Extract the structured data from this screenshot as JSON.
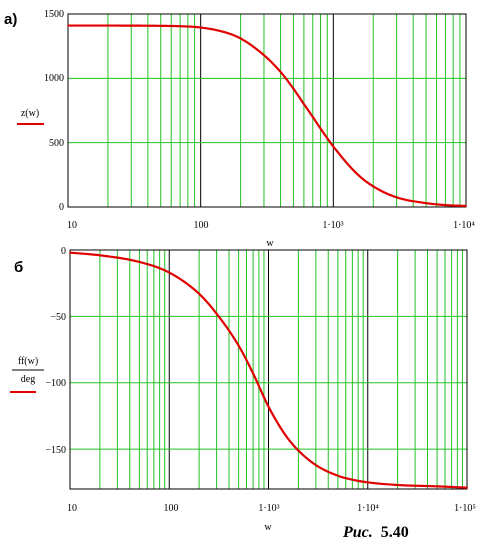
{
  "caption": {
    "prefix": "Рис.",
    "number": "5.40"
  },
  "chart_data": [
    {
      "type": "line",
      "panel_label": "а)",
      "xlabel": "w",
      "ylabel": "z(w)",
      "xscale": "log",
      "xlim": [
        10,
        10000
      ],
      "ylim": [
        0,
        1500
      ],
      "grid": true,
      "x_tick_labels": [
        "10",
        "100",
        "1·10³",
        "1·10⁴"
      ],
      "y_tick_labels": [
        "0",
        "500",
        "1000",
        "1500"
      ],
      "y_ticks": [
        0,
        500,
        1000,
        1500
      ],
      "series": [
        {
          "color": "#e00000",
          "x": [
            10,
            20,
            50,
            70,
            100,
            150,
            200,
            300,
            400,
            500,
            600,
            700,
            800,
            1000,
            1500,
            2000,
            3000,
            5000,
            7000,
            10000
          ],
          "y": [
            1410,
            1410,
            1408,
            1405,
            1395,
            1360,
            1310,
            1180,
            1050,
            920,
            800,
            700,
            610,
            470,
            260,
            160,
            75,
            30,
            15,
            8
          ]
        }
      ]
    },
    {
      "type": "line",
      "panel_label": "б",
      "xlabel": "w",
      "ylabel": "ff(w)",
      "ylabel_denominator": "deg",
      "xscale": "log",
      "xlim": [
        10,
        100000
      ],
      "ylim": [
        -180,
        0
      ],
      "grid": true,
      "x_tick_labels": [
        "10",
        "100",
        "1·10³",
        "1·10⁴",
        "1·10⁵"
      ],
      "y_tick_labels": [
        "0",
        "−50",
        "−100",
        "−150"
      ],
      "y_ticks": [
        0,
        -50,
        -100,
        -150
      ],
      "series": [
        {
          "color": "#e00000",
          "x": [
            10,
            20,
            50,
            100,
            200,
            300,
            500,
            700,
            1000,
            1500,
            2000,
            3000,
            5000,
            7000,
            10000,
            20000,
            50000,
            100000
          ],
          "y": [
            -2,
            -4,
            -9,
            -17,
            -33,
            -48,
            -72,
            -93,
            -118,
            -140,
            -151,
            -162,
            -170,
            -173,
            -175,
            -177,
            -178,
            -179
          ]
        }
      ]
    }
  ]
}
